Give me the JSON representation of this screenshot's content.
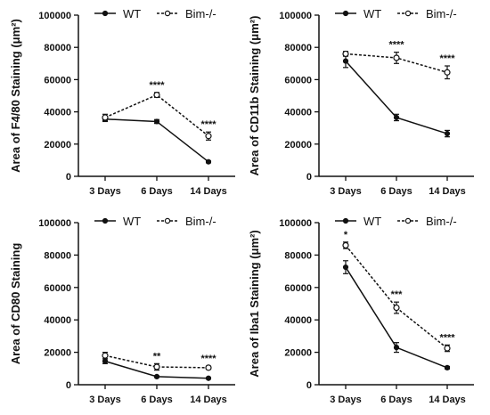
{
  "chart_data": [
    {
      "type": "line",
      "ylabel": "Area of F4/80 Staining",
      "unit": "(μm²)",
      "categories": [
        "3 Days",
        "6 Days",
        "14 Days"
      ],
      "ylim": [
        0,
        100000
      ],
      "yticks": [
        "0",
        "20000",
        "40000",
        "60000",
        "80000",
        "100000"
      ],
      "legend": [
        "WT",
        "Bim-/-"
      ],
      "series": [
        {
          "name": "WT",
          "style": "solid",
          "marker": "filled",
          "values": [
            35500,
            34000,
            9000
          ],
          "errors": [
            1500,
            1200,
            600
          ]
        },
        {
          "name": "Bim-/-",
          "style": "dashed",
          "marker": "open",
          "values": [
            36500,
            50500,
            25000
          ],
          "errors": [
            2000,
            1500,
            2500
          ]
        }
      ],
      "annotations": [
        "",
        "****",
        "****"
      ]
    },
    {
      "type": "line",
      "ylabel": "Area of CD11b Staining",
      "unit": "(μm²)",
      "categories": [
        "3 Days",
        "6 Days",
        "14 Days"
      ],
      "ylim": [
        0,
        100000
      ],
      "yticks": [
        "0",
        "20000",
        "40000",
        "60000",
        "80000",
        "100000"
      ],
      "legend": [
        "WT",
        "Bim-/-"
      ],
      "series": [
        {
          "name": "WT",
          "style": "solid",
          "marker": "filled",
          "values": [
            71500,
            36500,
            26500
          ],
          "errors": [
            4000,
            2000,
            2000
          ]
        },
        {
          "name": "Bim-/-",
          "style": "dashed",
          "marker": "open",
          "values": [
            76000,
            73500,
            64500
          ],
          "errors": [
            1500,
            3500,
            4000
          ]
        }
      ],
      "annotations": [
        "",
        "****",
        "****"
      ]
    },
    {
      "type": "line",
      "ylabel": "Area of CD80 Staining",
      "unit": "",
      "categories": [
        "3 Days",
        "6 Days",
        "14 Days"
      ],
      "ylim": [
        0,
        100000
      ],
      "yticks": [
        "0",
        "20000",
        "40000",
        "60000",
        "80000",
        "100000"
      ],
      "legend": [
        "WT",
        "Bim-/-"
      ],
      "series": [
        {
          "name": "WT",
          "style": "solid",
          "marker": "filled",
          "values": [
            14500,
            5000,
            4000
          ],
          "errors": [
            1500,
            500,
            400
          ]
        },
        {
          "name": "Bim-/-",
          "style": "dashed",
          "marker": "open",
          "values": [
            18000,
            11000,
            10500
          ],
          "errors": [
            2000,
            2000,
            1000
          ]
        }
      ],
      "annotations": [
        "",
        "**",
        "****"
      ]
    },
    {
      "type": "line",
      "ylabel": "Area of Iba1 Staining",
      "unit": "(μm²)",
      "categories": [
        "3 Days",
        "6 Days",
        "14 Days"
      ],
      "ylim": [
        0,
        100000
      ],
      "yticks": [
        "0",
        "20000",
        "40000",
        "60000",
        "80000",
        "100000"
      ],
      "legend": [
        "WT",
        "Bim-/-"
      ],
      "series": [
        {
          "name": "WT",
          "style": "solid",
          "marker": "filled",
          "values": [
            72500,
            23000,
            10500
          ],
          "errors": [
            4000,
            3000,
            800
          ]
        },
        {
          "name": "Bim-/-",
          "style": "dashed",
          "marker": "open",
          "values": [
            86000,
            47500,
            22500
          ],
          "errors": [
            2000,
            3500,
            2000
          ]
        }
      ],
      "annotations": [
        "*",
        "***",
        "****"
      ]
    }
  ]
}
